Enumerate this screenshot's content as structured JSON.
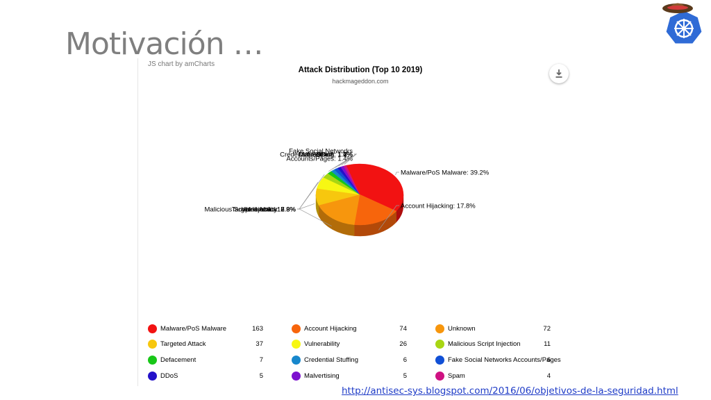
{
  "slide": {
    "title": "Motivación …",
    "source_link": "http://antisec-sys.blogspot.com/2016/06/objetivos-de-la-seguridad.html"
  },
  "chart_panel": {
    "credit": "JS chart by amCharts",
    "download_icon": "download-icon"
  },
  "chart_data": {
    "type": "pie",
    "title": "Attack Distribution (Top 10 2019)",
    "subtitle": "hackmageddon.com",
    "legend_position": "bottom",
    "slices": [
      {
        "name": "Malware/PoS Malware",
        "value": 163,
        "label": "Malware/PoS Malware: 39.2%",
        "color": "#f21212"
      },
      {
        "name": "Account Hijacking",
        "value": 74,
        "label": "Account Hijacking: 17.8%",
        "color": "#f7650c"
      },
      {
        "name": "Unknown",
        "value": 72,
        "label": "Unknown: 17.3%",
        "color": "#f7960d"
      },
      {
        "name": "Targeted Attack",
        "value": 37,
        "label": "Targeted Attack: 8.9%",
        "color": "#f7c70e"
      },
      {
        "name": "Vulnerability",
        "value": 26,
        "label": "Vulnerability: 6.3%",
        "color": "#f7f713"
      },
      {
        "name": "Malicious Script Injection",
        "value": 11,
        "label": "Malicious Script Injection: 2.6%",
        "color": "#a8d613"
      },
      {
        "name": "Defacement",
        "value": 7,
        "label": "Defacement: 1.7%",
        "color": "#18c718"
      },
      {
        "name": "Credential Stuffing",
        "value": 6,
        "label": "Credential Stuffing: 1.4%",
        "color": "#1787cc"
      },
      {
        "name": "Fake Social Networks Accounts/Pages",
        "value": 6,
        "label": "Fake Social Networks|Accounts/Pages: 1.4%",
        "color": "#1150d6"
      },
      {
        "name": "DDoS",
        "value": 5,
        "label": "DDoS: 1.2%",
        "color": "#2311c9"
      },
      {
        "name": "Malvertising",
        "value": 5,
        "label": "Malvertising: 1.2%",
        "color": "#7d12cf"
      },
      {
        "name": "Spam",
        "value": 4,
        "label": "Spam: 1.0%",
        "color": "#cf1282"
      }
    ]
  }
}
